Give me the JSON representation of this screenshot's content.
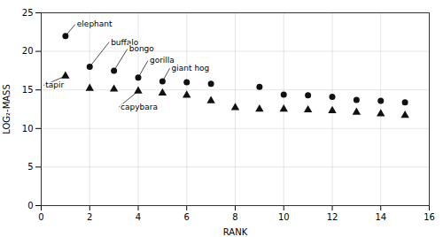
{
  "chart_data": {
    "type": "scatter",
    "xlabel": "RANK",
    "ylabel": "LOG₂-MASS",
    "xlim": [
      0,
      16
    ],
    "ylim": [
      0,
      25
    ],
    "xticks": [
      0,
      2,
      4,
      6,
      8,
      10,
      12,
      14,
      16
    ],
    "yticks": [
      0,
      5,
      10,
      15,
      20,
      25
    ],
    "grid": true,
    "series": [
      {
        "marker": "circle",
        "color": "#111111",
        "x": [
          1,
          2,
          3,
          4,
          5,
          6,
          7,
          9,
          10,
          11,
          12,
          13,
          14,
          15
        ],
        "values": [
          22.0,
          18.0,
          17.5,
          16.6,
          16.1,
          16.0,
          15.8,
          15.4,
          14.4,
          14.3,
          14.1,
          13.7,
          13.6,
          13.4
        ]
      },
      {
        "marker": "triangle",
        "color": "#111111",
        "x": [
          1,
          2,
          3,
          4,
          5,
          6,
          7,
          8,
          9,
          10,
          11,
          12,
          13,
          14,
          15
        ],
        "values": [
          16.8,
          15.2,
          15.1,
          14.85,
          14.6,
          14.3,
          13.6,
          12.7,
          12.5,
          12.5,
          12.4,
          12.3,
          12.1,
          11.9,
          11.7
        ]
      }
    ],
    "annotations": [
      {
        "text": "elephant",
        "xy": [
          1,
          22.0
        ],
        "xytext": [
          1.4,
          23.5
        ]
      },
      {
        "text": "buffalo",
        "xy": [
          2,
          18.0
        ],
        "xytext": [
          2.8,
          21.2
        ]
      },
      {
        "text": "bongo",
        "xy": [
          3,
          17.5
        ],
        "xytext": [
          3.55,
          20.3
        ]
      },
      {
        "text": "gorilla",
        "xy": [
          4,
          16.6
        ],
        "xytext": [
          4.4,
          18.8
        ]
      },
      {
        "text": "giant hog",
        "xy": [
          5,
          16.1
        ],
        "xytext": [
          5.3,
          17.8
        ]
      },
      {
        "text": "tapir",
        "xy": [
          1,
          16.8
        ],
        "xytext": [
          0.1,
          15.6
        ]
      },
      {
        "text": "capybara",
        "xy": [
          4,
          14.85
        ],
        "xytext": [
          3.2,
          12.8
        ]
      }
    ]
  }
}
